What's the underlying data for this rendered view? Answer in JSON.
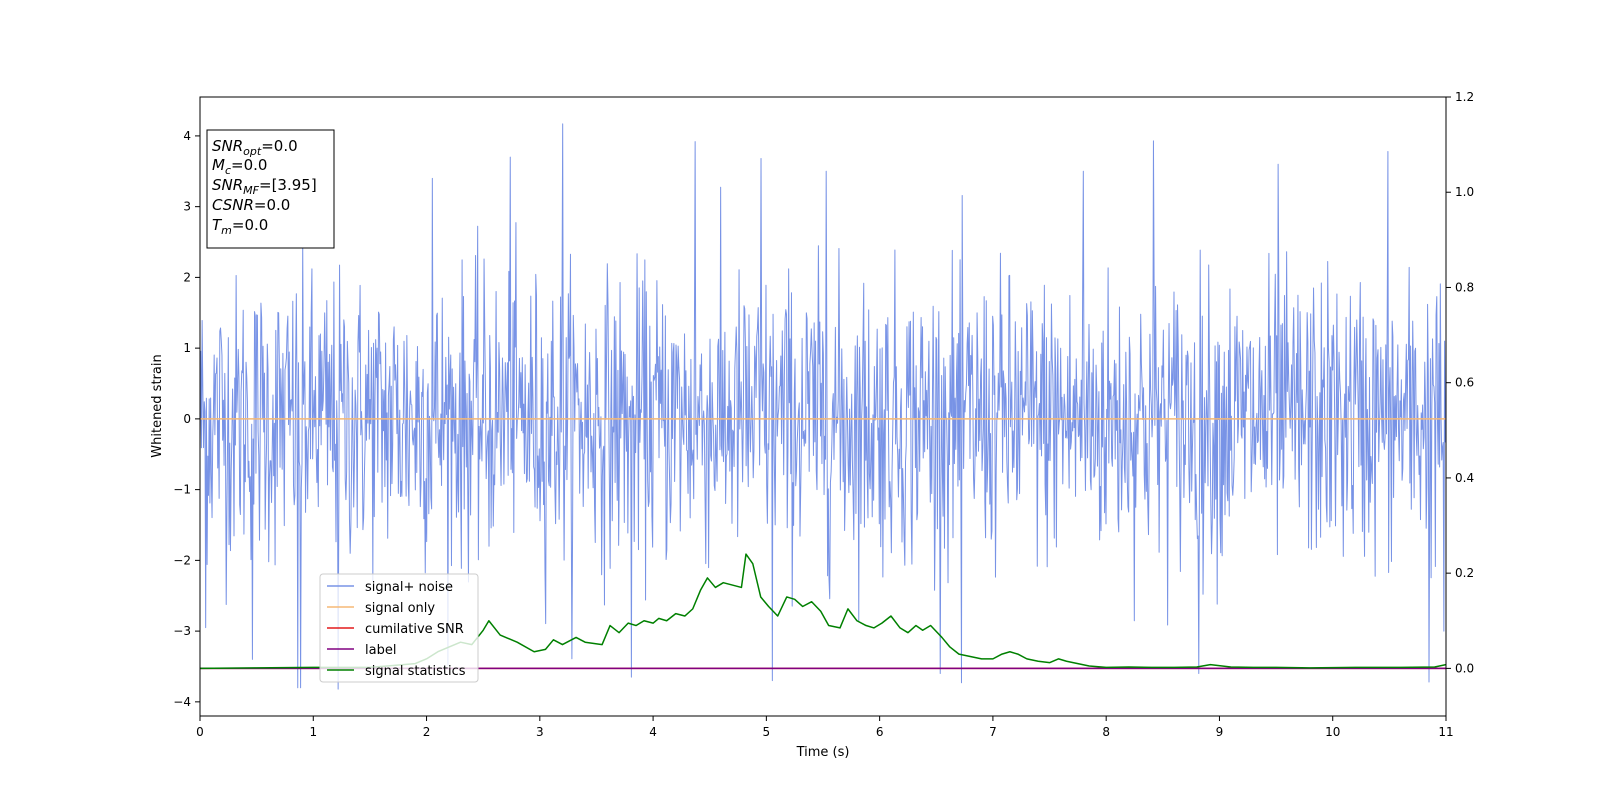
{
  "chart_data": {
    "type": "line",
    "xlabel": "Time (s)",
    "ylabel": "Whitened strain",
    "xlim": [
      0,
      11
    ],
    "ylim": [
      -4.2,
      4.55
    ],
    "y2lim": [
      -0.1,
      1.2
    ],
    "xticks": [
      0,
      1,
      2,
      3,
      4,
      5,
      6,
      7,
      8,
      9,
      10,
      11
    ],
    "yticks": [
      -4,
      -3,
      -2,
      -1,
      0,
      1,
      2,
      3,
      4
    ],
    "y2ticks": [
      "0.0",
      "0.2",
      "0.4",
      "0.6",
      "0.8",
      "1.0",
      "1.2"
    ],
    "legend_position": "lower-left",
    "grid": false,
    "annotation": {
      "position": "upper-left",
      "lines": [
        {
          "var": "SNR",
          "sub": "opt",
          "value": "=0.0"
        },
        {
          "var": "M",
          "sub": "c",
          "value": "=0.0"
        },
        {
          "var": "SNR",
          "sub": "MF",
          "value": "=[3.95]"
        },
        {
          "var": "CSNR",
          "sub": "",
          "value": "=0.0"
        },
        {
          "var": "T",
          "sub": "m",
          "value": "=0.0"
        }
      ]
    },
    "series": [
      {
        "name": "signal+ noise",
        "axis": "left",
        "color": "#7893e6",
        "kind": "noise",
        "std": 1.0,
        "samples": 1760,
        "spikes": [
          {
            "x": 0.86,
            "y": -3.8
          },
          {
            "x": 0.89,
            "y": -3.8
          },
          {
            "x": 1.22,
            "y": -3.82
          },
          {
            "x": 3.2,
            "y": 4.17
          },
          {
            "x": 4.37,
            "y": 3.92
          },
          {
            "x": 5.05,
            "y": -3.7
          },
          {
            "x": 6.72,
            "y": -3.73
          },
          {
            "x": 8.42,
            "y": 3.93
          },
          {
            "x": 10.49,
            "y": 3.78
          },
          {
            "x": 10.85,
            "y": -3.72
          },
          {
            "x": 0.05,
            "y": -2.95
          },
          {
            "x": 10.98,
            "y": -3.0
          },
          {
            "x": 3.81,
            "y": -3.65
          },
          {
            "x": 8.82,
            "y": -3.6
          },
          {
            "x": 2.74,
            "y": 3.7
          },
          {
            "x": 4.95,
            "y": 3.68
          },
          {
            "x": 5.53,
            "y": 3.5
          },
          {
            "x": 9.52,
            "y": 3.6
          },
          {
            "x": 7.8,
            "y": 3.5
          },
          {
            "x": 2.05,
            "y": 3.4
          },
          {
            "x": 0.46,
            "y": -3.4
          }
        ]
      },
      {
        "name": "signal only",
        "axis": "left",
        "color": "#f5b976",
        "x": [
          0,
          11
        ],
        "y": [
          0,
          0
        ]
      },
      {
        "name": "cumilative SNR",
        "axis": "right",
        "color": "#e31a1c",
        "x": [
          0,
          11
        ],
        "y": [
          0,
          0
        ]
      },
      {
        "name": "label",
        "axis": "right",
        "color": "#800080",
        "x": [
          0,
          11
        ],
        "y": [
          0,
          0
        ]
      },
      {
        "name": "signal statistics",
        "axis": "right",
        "color": "#008000",
        "x": [
          0,
          0.5,
          1.0,
          1.5,
          1.9,
          2.0,
          2.1,
          2.2,
          2.3,
          2.4,
          2.5,
          2.55,
          2.65,
          2.8,
          2.95,
          3.05,
          3.12,
          3.2,
          3.32,
          3.4,
          3.55,
          3.62,
          3.7,
          3.78,
          3.85,
          3.92,
          4.0,
          4.05,
          4.12,
          4.2,
          4.28,
          4.35,
          4.42,
          4.48,
          4.55,
          4.62,
          4.7,
          4.78,
          4.82,
          4.88,
          4.95,
          5.02,
          5.1,
          5.18,
          5.25,
          5.32,
          5.4,
          5.48,
          5.55,
          5.65,
          5.72,
          5.8,
          5.88,
          5.95,
          6.02,
          6.1,
          6.18,
          6.25,
          6.32,
          6.38,
          6.45,
          6.55,
          6.62,
          6.7,
          6.8,
          6.9,
          7.0,
          7.08,
          7.15,
          7.22,
          7.3,
          7.4,
          7.5,
          7.58,
          7.65,
          7.75,
          7.85,
          8.0,
          8.2,
          8.4,
          8.6,
          8.8,
          8.92,
          9.1,
          9.3,
          9.5,
          9.8,
          10.2,
          10.6,
          10.9,
          11.0
        ],
        "y": [
          0,
          0.001,
          0.002,
          0.002,
          0.01,
          0.02,
          0.035,
          0.045,
          0.055,
          0.05,
          0.08,
          0.1,
          0.07,
          0.055,
          0.035,
          0.04,
          0.06,
          0.05,
          0.065,
          0.055,
          0.05,
          0.09,
          0.075,
          0.095,
          0.09,
          0.1,
          0.095,
          0.105,
          0.1,
          0.115,
          0.11,
          0.125,
          0.165,
          0.19,
          0.17,
          0.18,
          0.175,
          0.17,
          0.24,
          0.22,
          0.15,
          0.13,
          0.11,
          0.15,
          0.145,
          0.13,
          0.14,
          0.12,
          0.09,
          0.085,
          0.125,
          0.1,
          0.09,
          0.085,
          0.095,
          0.11,
          0.085,
          0.075,
          0.09,
          0.08,
          0.09,
          0.065,
          0.045,
          0.03,
          0.025,
          0.02,
          0.02,
          0.03,
          0.035,
          0.03,
          0.02,
          0.015,
          0.012,
          0.02,
          0.015,
          0.01,
          0.005,
          0.002,
          0.003,
          0.002,
          0.002,
          0.003,
          0.008,
          0.003,
          0.002,
          0.002,
          0.001,
          0.002,
          0.002,
          0.003,
          0.008
        ]
      }
    ]
  }
}
